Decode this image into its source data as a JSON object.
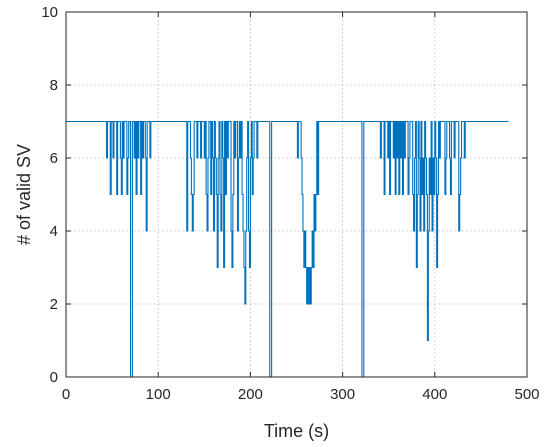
{
  "chart_data": {
    "type": "line",
    "title": "",
    "xlabel": "Time (s)",
    "ylabel": "# of valid SV",
    "xlim": [
      0,
      500
    ],
    "ylim": [
      0,
      10
    ],
    "xticks": [
      0,
      100,
      200,
      300,
      400,
      500
    ],
    "yticks": [
      0,
      2,
      4,
      6,
      8,
      10
    ],
    "x_tick_labels": [
      "0",
      "100",
      "200",
      "300",
      "400",
      "500"
    ],
    "y_tick_labels": [
      "0",
      "2",
      "4",
      "6",
      "8",
      "10"
    ],
    "grid": true,
    "line_color": "#0072BD",
    "series": [
      {
        "points": [
          [
            0,
            7
          ],
          [
            43,
            7
          ],
          [
            44,
            6
          ],
          [
            45,
            7
          ],
          [
            47,
            7
          ],
          [
            48,
            5
          ],
          [
            49,
            7
          ],
          [
            50,
            7
          ],
          [
            51,
            6
          ],
          [
            52,
            7
          ],
          [
            54,
            7
          ],
          [
            55,
            5
          ],
          [
            56,
            7
          ],
          [
            58,
            7
          ],
          [
            59,
            6
          ],
          [
            60,
            5
          ],
          [
            61,
            7
          ],
          [
            62,
            6
          ],
          [
            63,
            7
          ],
          [
            65,
            7
          ],
          [
            66,
            5
          ],
          [
            67,
            6
          ],
          [
            68,
            7
          ],
          [
            69,
            7
          ],
          [
            70,
            0
          ],
          [
            71,
            0
          ],
          [
            72,
            7
          ],
          [
            73,
            7
          ],
          [
            74,
            6
          ],
          [
            75,
            7
          ],
          [
            76,
            5
          ],
          [
            77,
            7
          ],
          [
            78,
            6
          ],
          [
            79,
            7
          ],
          [
            80,
            7
          ],
          [
            81,
            5
          ],
          [
            82,
            7
          ],
          [
            83,
            6
          ],
          [
            84,
            7
          ],
          [
            85,
            7
          ],
          [
            86,
            6
          ],
          [
            87,
            4
          ],
          [
            88,
            7
          ],
          [
            90,
            7
          ],
          [
            91,
            6
          ],
          [
            92,
            7
          ],
          [
            94,
            7
          ],
          [
            130,
            7
          ],
          [
            131,
            4
          ],
          [
            132,
            7
          ],
          [
            134,
            7
          ],
          [
            135,
            6
          ],
          [
            136,
            5
          ],
          [
            137,
            4
          ],
          [
            138,
            5
          ],
          [
            139,
            7
          ],
          [
            141,
            7
          ],
          [
            142,
            6
          ],
          [
            143,
            7
          ],
          [
            145,
            7
          ],
          [
            146,
            6
          ],
          [
            147,
            7
          ],
          [
            149,
            7
          ],
          [
            150,
            6
          ],
          [
            151,
            7
          ],
          [
            152,
            5
          ],
          [
            153,
            4
          ],
          [
            154,
            6
          ],
          [
            155,
            7
          ],
          [
            156,
            7
          ],
          [
            157,
            5
          ],
          [
            158,
            7
          ],
          [
            159,
            6
          ],
          [
            160,
            4
          ],
          [
            161,
            7
          ],
          [
            162,
            6
          ],
          [
            163,
            5
          ],
          [
            164,
            3
          ],
          [
            165,
            6
          ],
          [
            166,
            7
          ],
          [
            167,
            5
          ],
          [
            168,
            4
          ],
          [
            169,
            7
          ],
          [
            170,
            6
          ],
          [
            171,
            3
          ],
          [
            172,
            7
          ],
          [
            173,
            5
          ],
          [
            174,
            7
          ],
          [
            175,
            6
          ],
          [
            176,
            7
          ],
          [
            178,
            7
          ],
          [
            179,
            4
          ],
          [
            180,
            3
          ],
          [
            181,
            5
          ],
          [
            182,
            7
          ],
          [
            183,
            6
          ],
          [
            184,
            7
          ],
          [
            185,
            7
          ],
          [
            186,
            4
          ],
          [
            187,
            6
          ],
          [
            188,
            7
          ],
          [
            189,
            6
          ],
          [
            190,
            7
          ],
          [
            191,
            5
          ],
          [
            192,
            4
          ],
          [
            193,
            3
          ],
          [
            194,
            2
          ],
          [
            195,
            4
          ],
          [
            196,
            6
          ],
          [
            197,
            7
          ],
          [
            198,
            4
          ],
          [
            199,
            3
          ],
          [
            200,
            6
          ],
          [
            201,
            7
          ],
          [
            202,
            5
          ],
          [
            203,
            6
          ],
          [
            204,
            7
          ],
          [
            206,
            7
          ],
          [
            207,
            6
          ],
          [
            208,
            7
          ],
          [
            220,
            7
          ],
          [
            221,
            0
          ],
          [
            222,
            0
          ],
          [
            223,
            7
          ],
          [
            250,
            7
          ],
          [
            251,
            6
          ],
          [
            252,
            7
          ],
          [
            254,
            7
          ],
          [
            255,
            6
          ],
          [
            256,
            5
          ],
          [
            257,
            4
          ],
          [
            258,
            3
          ],
          [
            259,
            4
          ],
          [
            260,
            3
          ],
          [
            261,
            2
          ],
          [
            262,
            3
          ],
          [
            263,
            2
          ],
          [
            264,
            3
          ],
          [
            265,
            2
          ],
          [
            266,
            3
          ],
          [
            267,
            4
          ],
          [
            268,
            3
          ],
          [
            269,
            5
          ],
          [
            270,
            4
          ],
          [
            271,
            5
          ],
          [
            272,
            7
          ],
          [
            273,
            5
          ],
          [
            274,
            7
          ],
          [
            320,
            7
          ],
          [
            321,
            0
          ],
          [
            322,
            0
          ],
          [
            323,
            7
          ],
          [
            340,
            7
          ],
          [
            341,
            6
          ],
          [
            342,
            7
          ],
          [
            344,
            7
          ],
          [
            345,
            5
          ],
          [
            346,
            7
          ],
          [
            348,
            7
          ],
          [
            349,
            6
          ],
          [
            350,
            7
          ],
          [
            351,
            5
          ],
          [
            352,
            7
          ],
          [
            354,
            7
          ],
          [
            355,
            6
          ],
          [
            356,
            7
          ],
          [
            357,
            5
          ],
          [
            358,
            7
          ],
          [
            359,
            6
          ],
          [
            360,
            7
          ],
          [
            361,
            5
          ],
          [
            362,
            7
          ],
          [
            363,
            6
          ],
          [
            364,
            7
          ],
          [
            365,
            5
          ],
          [
            366,
            7
          ],
          [
            367,
            6
          ],
          [
            368,
            7
          ],
          [
            370,
            7
          ],
          [
            371,
            5
          ],
          [
            372,
            6
          ],
          [
            373,
            7
          ],
          [
            375,
            7
          ],
          [
            376,
            5
          ],
          [
            377,
            4
          ],
          [
            378,
            6
          ],
          [
            379,
            7
          ],
          [
            380,
            3
          ],
          [
            381,
            5
          ],
          [
            382,
            7
          ],
          [
            383,
            6
          ],
          [
            384,
            4
          ],
          [
            385,
            7
          ],
          [
            386,
            5
          ],
          [
            387,
            6
          ],
          [
            388,
            4
          ],
          [
            389,
            7
          ],
          [
            390,
            6
          ],
          [
            391,
            5
          ],
          [
            392,
            1
          ],
          [
            393,
            4
          ],
          [
            394,
            6
          ],
          [
            395,
            5
          ],
          [
            396,
            7
          ],
          [
            397,
            4
          ],
          [
            398,
            6
          ],
          [
            399,
            5
          ],
          [
            400,
            7
          ],
          [
            401,
            6
          ],
          [
            402,
            3
          ],
          [
            403,
            5
          ],
          [
            404,
            7
          ],
          [
            405,
            6
          ],
          [
            406,
            7
          ],
          [
            410,
            7
          ],
          [
            411,
            5
          ],
          [
            412,
            6
          ],
          [
            413,
            7
          ],
          [
            415,
            7
          ],
          [
            416,
            6
          ],
          [
            417,
            5
          ],
          [
            418,
            7
          ],
          [
            420,
            7
          ],
          [
            421,
            6
          ],
          [
            422,
            7
          ],
          [
            425,
            7
          ],
          [
            426,
            4
          ],
          [
            427,
            5
          ],
          [
            428,
            6
          ],
          [
            429,
            7
          ],
          [
            431,
            7
          ],
          [
            432,
            6
          ],
          [
            433,
            7
          ],
          [
            480,
            7
          ]
        ]
      }
    ]
  }
}
